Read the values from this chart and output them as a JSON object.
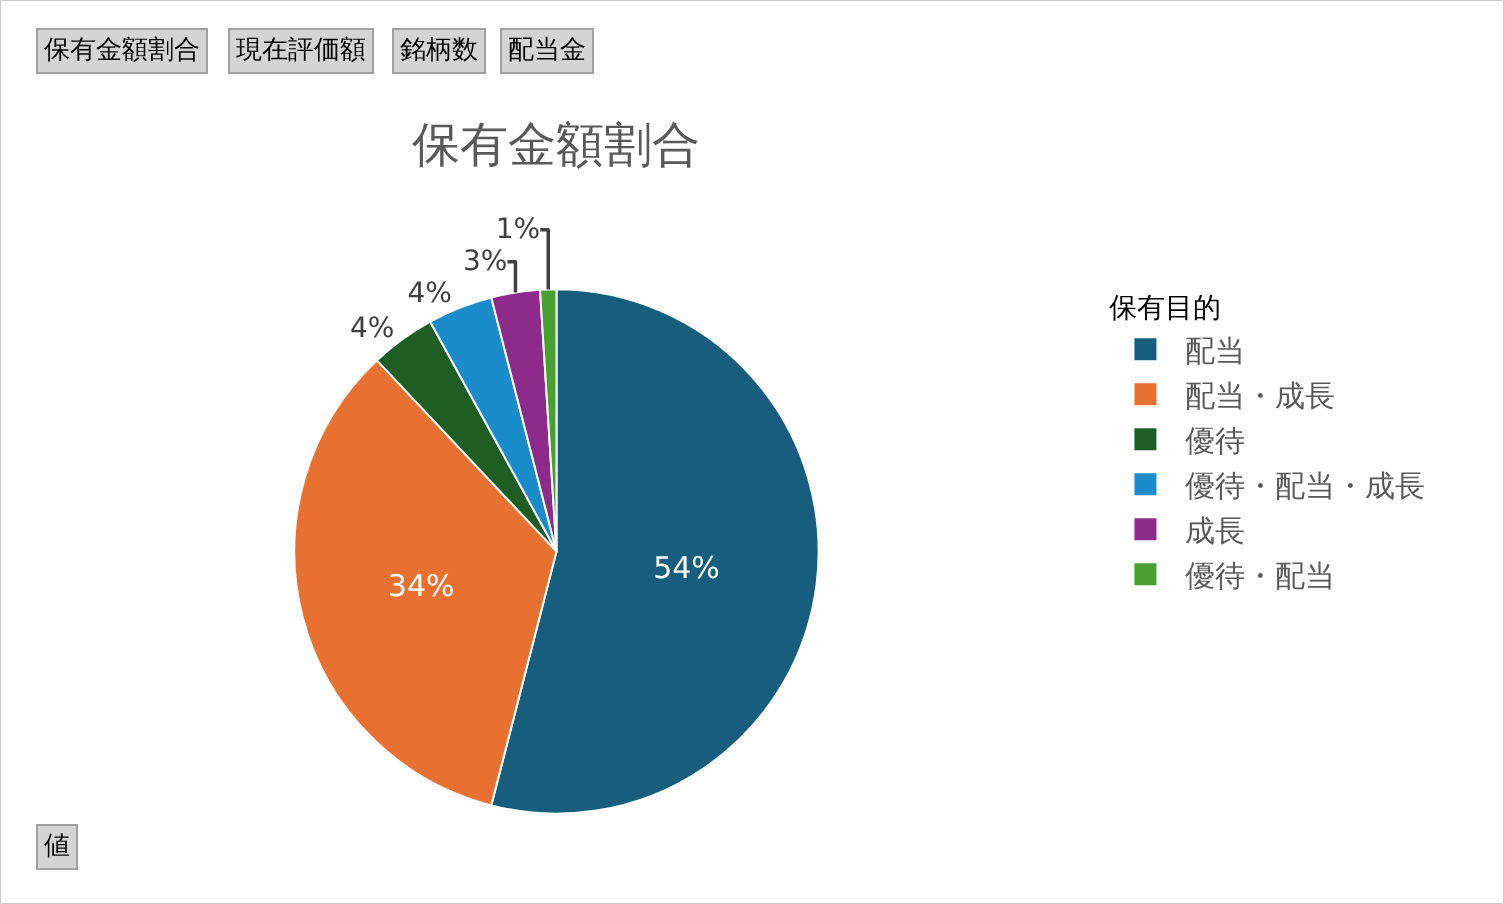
{
  "chart_data": {
    "type": "pie",
    "title": "保有金額割合",
    "categories": [
      "配当",
      "配当・成長",
      "優待",
      "優待・配当・成長",
      "成長",
      "優待・配当"
    ],
    "values": [
      54,
      34,
      4,
      4,
      3,
      1
    ],
    "value_labels": [
      "54%",
      "34%",
      "4%",
      "4%",
      "3%",
      "1%"
    ],
    "colors": [
      "#175e7e",
      "#e87132",
      "#1e5e25",
      "#1a8ccc",
      "#8e2a8a",
      "#47a02f"
    ],
    "legend_title": "保有目的",
    "legend": "right",
    "annotations": [
      "保有金額割合",
      "現在評価額",
      "銘柄数",
      "配当金",
      "値"
    ]
  }
}
